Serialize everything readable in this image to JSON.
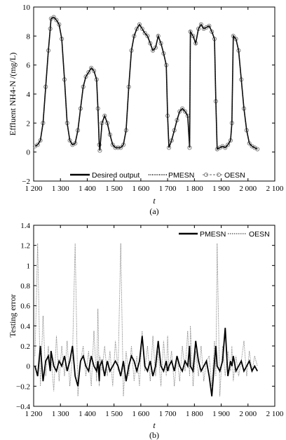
{
  "chart_data": [
    {
      "type": "line",
      "panel_label": "(a)",
      "xlabel": "t",
      "ylabel": "Effluent NH4-N /(mg/L)",
      "xlim": [
        1200,
        2100
      ],
      "ylim": [
        -2,
        10
      ],
      "xticks": [
        1200,
        1300,
        1400,
        1500,
        1600,
        1700,
        1800,
        1900,
        2000,
        2100
      ],
      "xtick_labels": [
        "1 200",
        "1 300",
        "1 400",
        "1 500",
        "1 600",
        "1 700",
        "1 800",
        "1 900",
        "2 000",
        "2 100"
      ],
      "yticks": [
        -2,
        0,
        2,
        4,
        6,
        8,
        10
      ],
      "ytick_labels": [
        "−2",
        "0",
        "2",
        "4",
        "6",
        "8",
        "10"
      ],
      "legend_position": "bottom",
      "legend": [
        "Desired output",
        "PMESN",
        "OESN"
      ],
      "x": [
        1205,
        1215,
        1225,
        1235,
        1245,
        1255,
        1262,
        1265,
        1275,
        1285,
        1295,
        1305,
        1315,
        1325,
        1335,
        1345,
        1355,
        1365,
        1375,
        1385,
        1395,
        1405,
        1415,
        1425,
        1435,
        1440,
        1445,
        1447,
        1455,
        1465,
        1475,
        1485,
        1495,
        1505,
        1515,
        1525,
        1535,
        1545,
        1555,
        1565,
        1575,
        1585,
        1595,
        1605,
        1615,
        1625,
        1635,
        1645,
        1655,
        1665,
        1675,
        1685,
        1695,
        1700,
        1705,
        1715,
        1725,
        1735,
        1745,
        1755,
        1765,
        1775,
        1782,
        1785,
        1795,
        1805,
        1815,
        1825,
        1835,
        1845,
        1855,
        1865,
        1875,
        1880,
        1885,
        1895,
        1905,
        1915,
        1925,
        1935,
        1940,
        1945,
        1955,
        1965,
        1975,
        1985,
        1995,
        2005,
        2015,
        2025,
        2035
      ],
      "series": [
        {
          "name": "Desired output",
          "values": [
            0.4,
            0.5,
            0.8,
            2.0,
            4.5,
            7.0,
            8.5,
            9.2,
            9.3,
            9.1,
            8.8,
            7.8,
            5.0,
            2.0,
            0.8,
            0.5,
            0.6,
            1.5,
            3.0,
            4.5,
            5.2,
            5.5,
            5.8,
            5.6,
            5.0,
            3.0,
            0.5,
            0.1,
            2.0,
            2.5,
            2.0,
            1.2,
            0.5,
            0.3,
            0.3,
            0.3,
            0.5,
            1.5,
            4.5,
            7.0,
            8.0,
            8.5,
            8.8,
            8.5,
            8.2,
            8.0,
            7.5,
            7.0,
            7.2,
            8.0,
            7.5,
            6.8,
            6.0,
            2.5,
            0.3,
            0.8,
            1.5,
            2.2,
            2.8,
            3.0,
            2.8,
            2.5,
            0.3,
            8.3,
            8.0,
            7.5,
            8.5,
            8.8,
            8.5,
            8.6,
            8.7,
            8.3,
            7.8,
            3.5,
            0.2,
            0.3,
            0.4,
            0.3,
            0.5,
            0.8,
            2.0,
            8.0,
            7.8,
            7.0,
            5.0,
            3.0,
            1.5,
            0.6,
            0.4,
            0.3,
            0.2
          ]
        }
      ]
    },
    {
      "type": "line",
      "panel_label": "(b)",
      "xlabel": "t",
      "ylabel": "Testing error",
      "xlim": [
        1200,
        2100
      ],
      "ylim": [
        -0.4,
        1.4
      ],
      "xticks": [
        1200,
        1300,
        1400,
        1500,
        1600,
        1700,
        1800,
        1900,
        2000,
        2100
      ],
      "xtick_labels": [
        "1 200",
        "1 300",
        "1 400",
        "1 500",
        "1 600",
        "1 700",
        "1 800",
        "1 900",
        "2 000",
        "2 100"
      ],
      "yticks": [
        -0.4,
        -0.2,
        0,
        0.2,
        0.4,
        0.6,
        0.8,
        1.0,
        1.2,
        1.4
      ],
      "ytick_labels": [
        "−0.4",
        "−0.2",
        "0",
        "0.2",
        "0.4",
        "0.6",
        "0.8",
        "1",
        "1.2",
        "1.4"
      ],
      "legend_position": "top-right",
      "legend": [
        "PMESN",
        "OESN"
      ],
      "x": [
        1205,
        1215,
        1225,
        1235,
        1245,
        1255,
        1262,
        1265,
        1275,
        1285,
        1295,
        1305,
        1315,
        1325,
        1335,
        1345,
        1355,
        1365,
        1375,
        1385,
        1395,
        1405,
        1415,
        1425,
        1435,
        1440,
        1445,
        1447,
        1455,
        1465,
        1475,
        1485,
        1495,
        1505,
        1515,
        1525,
        1535,
        1545,
        1555,
        1565,
        1575,
        1585,
        1595,
        1605,
        1615,
        1625,
        1635,
        1645,
        1655,
        1665,
        1675,
        1685,
        1695,
        1700,
        1705,
        1715,
        1725,
        1735,
        1745,
        1755,
        1765,
        1775,
        1782,
        1785,
        1795,
        1805,
        1815,
        1825,
        1835,
        1845,
        1855,
        1865,
        1875,
        1880,
        1885,
        1895,
        1905,
        1915,
        1925,
        1935,
        1940,
        1945,
        1955,
        1965,
        1975,
        1985,
        1995,
        2005,
        2015,
        2025,
        2035
      ],
      "series": [
        {
          "name": "PMESN",
          "values": [
            0.0,
            -0.1,
            0.2,
            -0.15,
            0.05,
            0.1,
            -0.05,
            0.15,
            0.0,
            -0.05,
            0.05,
            0.0,
            0.1,
            -0.05,
            0.05,
            0.2,
            -0.1,
            -0.2,
            0.05,
            0.1,
            0.0,
            -0.05,
            0.1,
            0.0,
            -0.05,
            0.05,
            -0.15,
            0.0,
            0.05,
            -0.1,
            0.05,
            -0.05,
            0.0,
            0.05,
            0.0,
            -0.1,
            0.05,
            -0.15,
            0.0,
            0.1,
            0.05,
            -0.05,
            0.05,
            0.3,
            0.0,
            -0.05,
            0.05,
            -0.1,
            0.0,
            0.25,
            0.0,
            -0.05,
            0.05,
            -0.05,
            0.0,
            0.05,
            -0.05,
            0.1,
            0.0,
            -0.05,
            0.05,
            0.0,
            0.2,
            0.0,
            -0.05,
            0.25,
            0.05,
            -0.05,
            0.0,
            0.05,
            -0.1,
            -0.3,
            0.05,
            0.2,
            0.0,
            -0.05,
            0.05,
            0.38,
            -0.1,
            0.05,
            0.0,
            0.1,
            -0.05,
            0.0,
            0.05,
            -0.05,
            0.0,
            0.05,
            -0.05,
            0.0,
            -0.05
          ]
        },
        {
          "name": "OESN",
          "values": [
            0.1,
            1.22,
            -0.2,
            0.5,
            -0.1,
            0.2,
            -0.05,
            0.1,
            -0.25,
            0.3,
            -0.15,
            0.2,
            -0.1,
            0.25,
            -0.2,
            0.1,
            1.22,
            -0.3,
            0.05,
            0.2,
            -0.1,
            0.15,
            -0.2,
            0.35,
            -0.15,
            0.57,
            -0.2,
            0.1,
            -0.05,
            0.2,
            -0.1,
            0.15,
            -0.2,
            0.25,
            -0.05,
            1.22,
            -0.3,
            0.15,
            -0.1,
            0.2,
            -0.15,
            0.1,
            -0.2,
            0.35,
            -0.05,
            0.2,
            -0.15,
            0.3,
            -0.1,
            0.15,
            -0.2,
            0.25,
            -0.1,
            0.3,
            -0.05,
            0.15,
            -0.2,
            0.1,
            -0.15,
            0.2,
            -0.05,
            0.35,
            -0.1,
            0.4,
            -0.2,
            0.15,
            -0.1,
            0.2,
            -0.15,
            0.05,
            0.1,
            -0.2,
            0.25,
            -0.1,
            1.22,
            -0.3,
            0.2,
            -0.1,
            0.15,
            -0.05,
            0.2,
            -0.15,
            0.1,
            -0.1,
            0.05,
            0.25,
            -0.1,
            0.15,
            -0.05,
            0.1,
            0.0
          ]
        }
      ]
    }
  ]
}
